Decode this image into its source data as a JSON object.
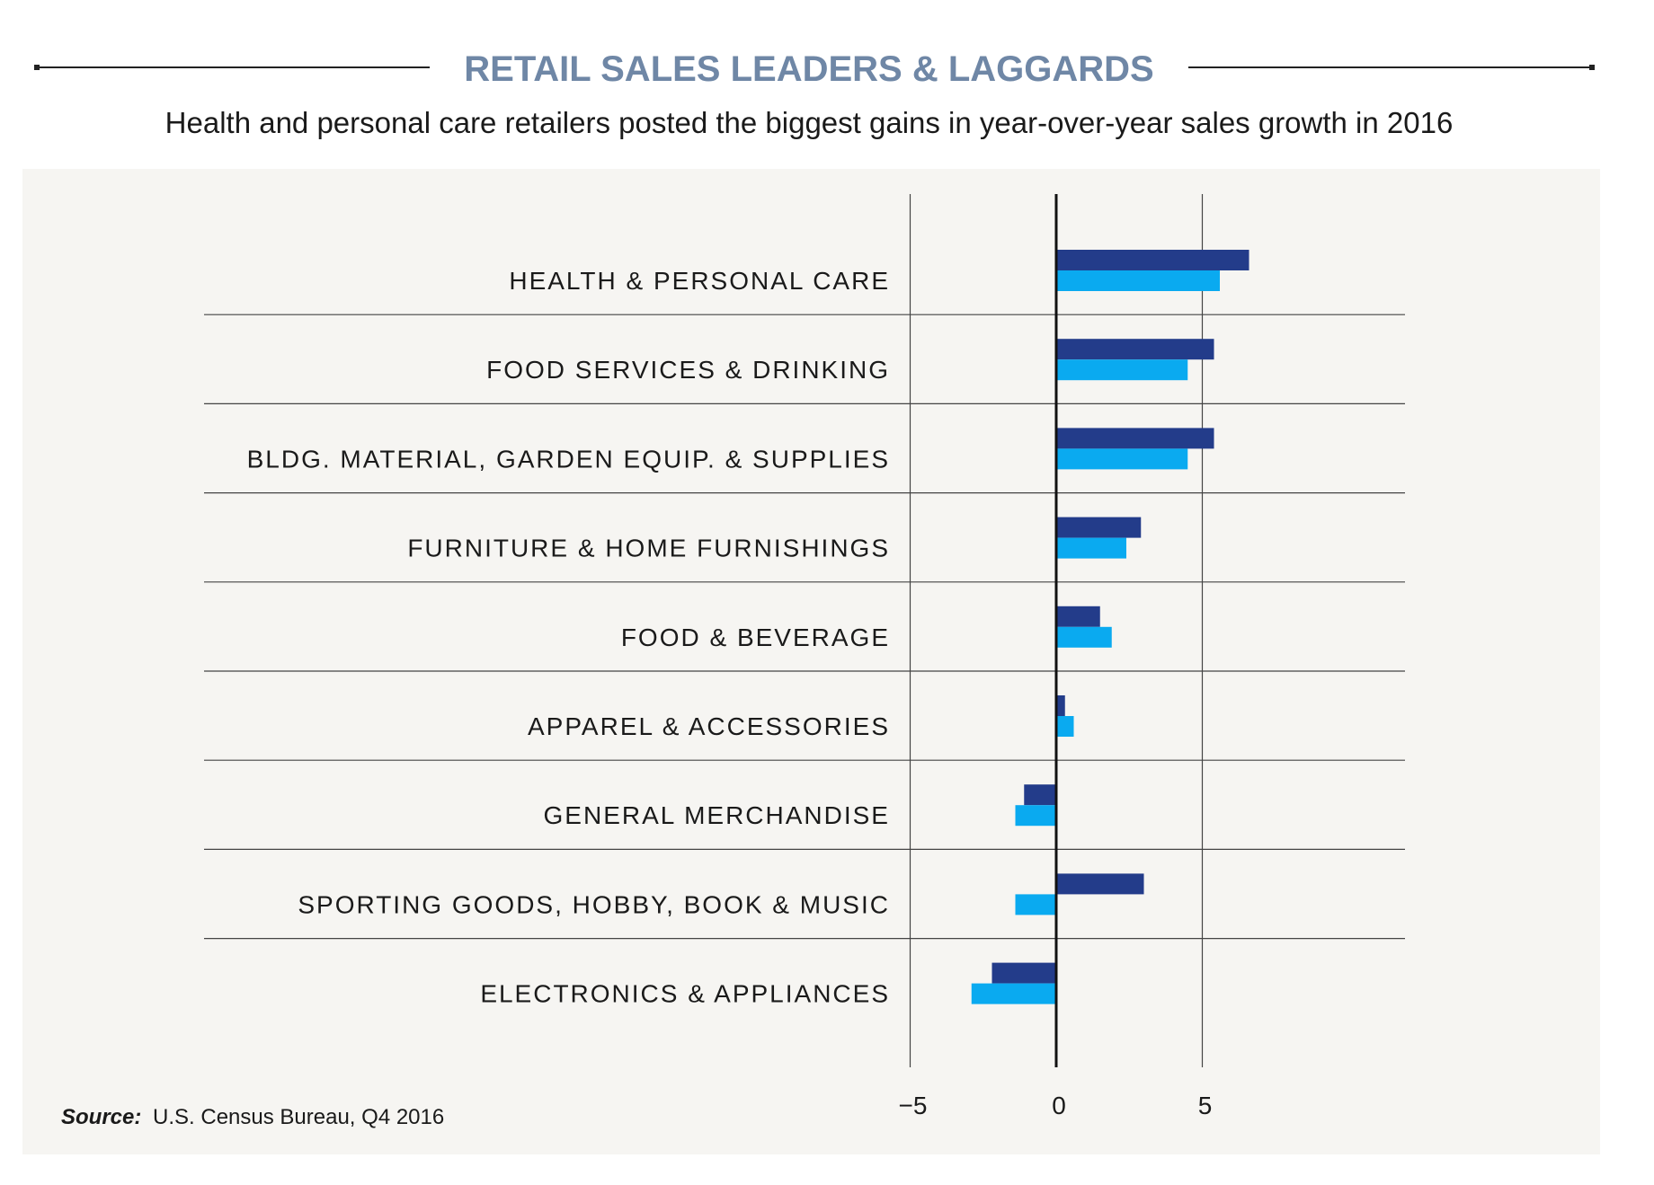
{
  "header": {
    "title": "RETAIL SALES LEADERS & LAGGARDS",
    "subtitle": "Health and personal care retailers posted the biggest gains in year-over-year sales growth in 2016"
  },
  "source": {
    "label": "Source:",
    "text": "U.S. Census Bureau, Q4 2016"
  },
  "colors": {
    "title": "#6f87a6",
    "series_dark": "#233c8a",
    "series_light": "#0aaaf0",
    "panel": "#f6f5f2",
    "grid": "#444444",
    "zero_line": "#111111",
    "text": "#1a1a1a"
  },
  "chart_data": {
    "type": "bar",
    "orientation": "horizontal",
    "categories": [
      "HEALTH & PERSONAL CARE",
      "FOOD SERVICES & DRINKING",
      "BLDG. MATERIAL, GARDEN EQUIP. & SUPPLIES",
      "FURNITURE & HOME FURNISHINGS",
      "FOOD & BEVERAGE",
      "APPAREL & ACCESSORIES",
      "GENERAL MERCHANDISE",
      "SPORTING GOODS, HOBBY, BOOK & MUSIC",
      "ELECTRONICS & APPLIANCES"
    ],
    "series": [
      {
        "values": [
          6.6,
          5.4,
          5.4,
          2.9,
          1.5,
          0.3,
          -1.1,
          3.0,
          -2.2
        ]
      },
      {
        "values": [
          5.6,
          4.5,
          4.5,
          2.4,
          1.9,
          0.6,
          -1.4,
          -1.4,
          -2.9
        ]
      }
    ],
    "xticks": [
      -5,
      0,
      5
    ],
    "xtick_labels": [
      "−5",
      "0",
      "5"
    ],
    "xlim": [
      -5,
      10
    ],
    "grid": true,
    "legend": "none"
  }
}
